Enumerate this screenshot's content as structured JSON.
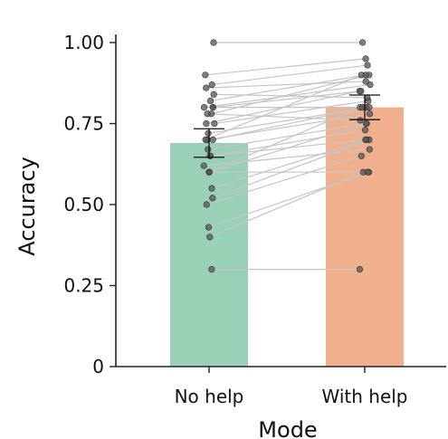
{
  "chart_data": {
    "type": "bar",
    "title": "",
    "xlabel": "Mode",
    "ylabel": "Accuracy",
    "categories": [
      "No help",
      "With help"
    ],
    "values": [
      0.69,
      0.8
    ],
    "error": [
      0.044,
      0.038
    ],
    "ylim": [
      0,
      1.0
    ],
    "yticks": [
      "0",
      "0.25",
      "0.50",
      "0.75",
      "1.00"
    ],
    "ytick_values": [
      0,
      0.25,
      0.5,
      0.75,
      1.0
    ],
    "bar_colors": [
      "#98d1b6",
      "#f0b08e"
    ],
    "point_color": "#555555",
    "line_color": "#c4c4c4",
    "paired_points": [
      [
        0.3,
        0.3
      ],
      [
        0.4,
        0.6
      ],
      [
        0.43,
        0.6
      ],
      [
        0.5,
        0.65
      ],
      [
        0.52,
        0.7
      ],
      [
        0.55,
        0.7
      ],
      [
        0.6,
        0.6
      ],
      [
        0.6,
        0.8
      ],
      [
        0.6,
        0.75
      ],
      [
        0.62,
        0.67
      ],
      [
        0.65,
        0.7
      ],
      [
        0.65,
        0.73
      ],
      [
        0.67,
        0.75
      ],
      [
        0.7,
        0.8
      ],
      [
        0.7,
        0.78
      ],
      [
        0.72,
        0.8
      ],
      [
        0.75,
        0.85
      ],
      [
        0.75,
        0.82
      ],
      [
        0.78,
        0.9
      ],
      [
        0.8,
        0.8
      ],
      [
        0.8,
        0.85
      ],
      [
        0.8,
        0.87
      ],
      [
        0.82,
        0.9
      ],
      [
        0.84,
        0.83
      ],
      [
        0.86,
        0.88
      ],
      [
        0.87,
        0.93
      ],
      [
        0.9,
        0.95
      ],
      [
        1.0,
        1.0
      ],
      [
        0.7,
        0.9
      ],
      [
        0.78,
        0.76
      ]
    ]
  }
}
